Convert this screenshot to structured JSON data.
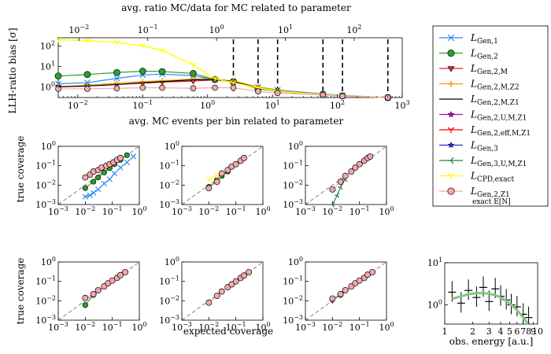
{
  "colors": {
    "gen1": "#2a8cf0",
    "gen2": "#2ca02c",
    "gen2M": "#d62728",
    "gen2MZ2": "#f0a000",
    "gen2MZ1": "#000000",
    "gen2UMZ1": "#c000c0",
    "gen2effMZ1": "#ff0000",
    "gen3": "#1f2fd0",
    "gen3UMZ1": "#208040",
    "cpd": "#ffff00",
    "gen2Z1": "#f4a6ad",
    "diag": "#999999",
    "energy_curve": "#7fc97f"
  },
  "legend": {
    "items": [
      {
        "key": "gen1",
        "base": "L",
        "sub": "Gen,1",
        "marker": "x",
        "color": "#2a8cf0"
      },
      {
        "key": "gen2",
        "base": "L",
        "sub": "Gen,2",
        "marker": "o",
        "color": "#2ca02c"
      },
      {
        "key": "gen2M",
        "base": "L",
        "sub": "Gen,2,M",
        "marker": "v",
        "color": "#d62728"
      },
      {
        "key": "gen2MZ2",
        "base": "L",
        "sub": "Gen,2,M,Z2",
        "marker": "plus",
        "color": "#f0a000"
      },
      {
        "key": "gen2MZ1",
        "base": "L",
        "sub": "Gen,2,M,Z1",
        "marker": "line",
        "color": "#000000"
      },
      {
        "key": "gen2UMZ1",
        "base": "L",
        "sub": "Gen,2,U,M,Z1",
        "marker": "star",
        "color": "#c000c0"
      },
      {
        "key": "gen2effMZ1",
        "base": "L",
        "sub": "Gen,2,eff,M,Z1",
        "marker": "tri1",
        "color": "#ff0000"
      },
      {
        "key": "gen3",
        "base": "L",
        "sub": "Gen,3",
        "marker": "star",
        "color": "#1f2fd0"
      },
      {
        "key": "gen3UMZ1",
        "base": "L",
        "sub": "Gen,3,U,M,Z1",
        "marker": "tri4",
        "color": "#208040"
      },
      {
        "key": "cpd",
        "base": "L",
        "sub": "CPD,exact",
        "marker": "tri1",
        "color": "#ffff00"
      },
      {
        "key": "gen2Z1",
        "base": "L",
        "sub": "Gen,2,Z1",
        "marker": "o",
        "color": "#f4a6ad",
        "sub2": "exact E[N]"
      }
    ]
  },
  "chart_data": [
    {
      "id": "bias",
      "type": "line",
      "title_top": "avg. ratio MC/data for MC related to parameter",
      "xlabel": "avg. MC events per bin related to parameter",
      "ylabel": "LLH-ratio bias [σ]",
      "xscale": "log",
      "yscale": "log",
      "xlim": [
        0.005,
        1000
      ],
      "ylim": [
        0.3,
        250
      ],
      "x_ticks": [
        "10^-2",
        "10^-1",
        "10^0",
        "10^1",
        "10^2",
        "10^3"
      ],
      "y_ticks": [
        "10^0",
        "10^1",
        "10^2"
      ],
      "top_xlim": [
        0.005,
        500
      ],
      "top_ticks": [
        "10^-2",
        "10^-1",
        "10^0",
        "10^1",
        "10^2"
      ],
      "vlines_x": [
        2.5,
        6,
        12,
        60,
        120,
        600
      ],
      "x": [
        0.005,
        0.014,
        0.04,
        0.1,
        0.2,
        0.6,
        1.3,
        2.5,
        6,
        12,
        60,
        120,
        600
      ],
      "series": [
        {
          "name": "gen1",
          "values": [
            1.4,
            1.6,
            2.6,
            3.8,
            4.2,
            3.5,
            2.2,
            1.7,
            1.0,
            0.7,
            0.45,
            0.38,
            0.3
          ]
        },
        {
          "name": "gen2",
          "values": [
            3.4,
            4.0,
            5.0,
            5.8,
            5.6,
            4.5,
            2.3,
            1.8,
            0.8,
            0.6,
            0.42,
            0.36,
            0.3
          ]
        },
        {
          "name": "gen2M",
          "values": [
            1.0,
            1.1,
            1.3,
            1.5,
            1.7,
            1.9,
            2.2,
            1.8,
            0.9,
            0.6,
            0.42,
            0.36,
            0.3
          ]
        },
        {
          "name": "gen2MZ2",
          "values": [
            1.0,
            1.2,
            1.5,
            1.8,
            2.0,
            2.4,
            2.5,
            1.9,
            1.0,
            0.65,
            0.42,
            0.36,
            0.3
          ]
        },
        {
          "name": "gen2MZ1",
          "values": [
            1.0,
            1.1,
            1.3,
            1.6,
            1.8,
            2.2,
            2.3,
            1.8,
            0.9,
            0.6,
            0.42,
            0.36,
            0.3
          ]
        },
        {
          "name": "cpd",
          "values": [
            200,
            180,
            150,
            100,
            60,
            12,
            2.5,
            1.6,
            0.9,
            0.6,
            0.42,
            0.36,
            0.3
          ]
        },
        {
          "name": "gen2Z1",
          "values": [
            0.8,
            0.8,
            0.85,
            0.9,
            0.9,
            0.85,
            0.9,
            0.9,
            0.6,
            0.5,
            0.4,
            0.35,
            0.3
          ]
        }
      ]
    },
    {
      "id": "cov-1",
      "type": "scatter",
      "ylabel": "true coverage",
      "xlim": [
        0.001,
        1
      ],
      "ylim": [
        0.001,
        1
      ],
      "x_ticks": [
        "10^-3",
        "10^-2",
        "10^-1",
        "10^0"
      ],
      "y_ticks": [
        "10^-3",
        "10^-2",
        "10^-1",
        "10^0"
      ],
      "series": [
        {
          "name": "gen1",
          "x": [
            0.01,
            0.015,
            0.02,
            0.03,
            0.05,
            0.08,
            0.12,
            0.2,
            0.35,
            0.6
          ],
          "y": [
            0.0025,
            0.003,
            0.004,
            0.006,
            0.012,
            0.02,
            0.04,
            0.08,
            0.15,
            0.3
          ]
        },
        {
          "name": "gen2",
          "x": [
            0.01,
            0.02,
            0.03,
            0.05,
            0.08,
            0.12,
            0.2,
            0.35
          ],
          "y": [
            0.007,
            0.015,
            0.025,
            0.045,
            0.075,
            0.12,
            0.2,
            0.35
          ]
        },
        {
          "name": "gen2Z1",
          "x": [
            0.01,
            0.015,
            0.02,
            0.03,
            0.04,
            0.06,
            0.08,
            0.11,
            0.15,
            0.2
          ],
          "y": [
            0.025,
            0.035,
            0.05,
            0.06,
            0.08,
            0.1,
            0.12,
            0.15,
            0.2,
            0.25
          ]
        }
      ]
    },
    {
      "id": "cov-2",
      "type": "scatter",
      "xlim": [
        0.001,
        1
      ],
      "ylim": [
        0.001,
        1
      ],
      "x_ticks": [
        "10^-3",
        "10^-2",
        "10^-1",
        "10^0"
      ],
      "y_ticks": [
        "10^-3",
        "10^-2",
        "10^-1",
        "10^0"
      ],
      "series": [
        {
          "name": "gen2",
          "x": [
            0.01,
            0.02,
            0.03,
            0.05
          ],
          "y": [
            0.008,
            0.018,
            0.03,
            0.05
          ]
        },
        {
          "name": "cpd",
          "x": [
            0.01,
            0.02,
            0.03
          ],
          "y": [
            0.02,
            0.03,
            0.04
          ]
        },
        {
          "name": "gen2Z1",
          "x": [
            0.01,
            0.02,
            0.03,
            0.05,
            0.07,
            0.1,
            0.15,
            0.2
          ],
          "y": [
            0.007,
            0.015,
            0.04,
            0.06,
            0.09,
            0.12,
            0.18,
            0.25
          ]
        }
      ]
    },
    {
      "id": "cov-3",
      "type": "scatter",
      "xlim": [
        0.001,
        1
      ],
      "ylim": [
        0.001,
        1
      ],
      "x_ticks": [
        "10^-3",
        "10^-2",
        "10^-1",
        "10^0"
      ],
      "y_ticks": [
        "10^-3",
        "10^-2",
        "10^-1",
        "10^0"
      ],
      "series": [
        {
          "name": "gen3UMZ1",
          "x": [
            0.01,
            0.015,
            0.02,
            0.03
          ],
          "y": [
            0.001,
            0.003,
            0.008,
            0.02
          ]
        },
        {
          "name": "gen2Z1",
          "x": [
            0.01,
            0.02,
            0.03,
            0.05,
            0.07,
            0.1,
            0.15,
            0.2,
            0.25
          ],
          "y": [
            0.006,
            0.015,
            0.03,
            0.05,
            0.08,
            0.12,
            0.18,
            0.25,
            0.3
          ]
        }
      ]
    },
    {
      "id": "cov-4",
      "type": "scatter",
      "ylabel": "true coverage",
      "xlim": [
        0.001,
        1
      ],
      "ylim": [
        0.001,
        1
      ],
      "x_ticks": [
        "10^-3",
        "10^-2",
        "10^-1",
        "10^0"
      ],
      "y_ticks": [
        "10^-3",
        "10^-2",
        "10^-1",
        "10^0"
      ],
      "series": [
        {
          "name": "gen2",
          "x": [
            0.01,
            0.02
          ],
          "y": [
            0.006,
            0.02
          ]
        },
        {
          "name": "gen2Z1",
          "x": [
            0.01,
            0.02,
            0.03,
            0.05,
            0.07,
            0.1,
            0.15,
            0.2,
            0.3
          ],
          "y": [
            0.014,
            0.022,
            0.035,
            0.055,
            0.08,
            0.11,
            0.15,
            0.21,
            0.3
          ]
        }
      ]
    },
    {
      "id": "cov-5",
      "type": "scatter",
      "xlabel": "expected coverage",
      "xlim": [
        0.001,
        1
      ],
      "ylim": [
        0.001,
        1
      ],
      "x_ticks": [
        "10^-3",
        "10^-2",
        "10^-1",
        "10^0"
      ],
      "y_ticks": [
        "10^-3",
        "10^-2",
        "10^-1",
        "10^0"
      ],
      "series": [
        {
          "name": "gen2Z1",
          "x": [
            0.01,
            0.02,
            0.03,
            0.05,
            0.07,
            0.1,
            0.15,
            0.2,
            0.3
          ],
          "y": [
            0.008,
            0.018,
            0.03,
            0.05,
            0.07,
            0.1,
            0.15,
            0.2,
            0.3
          ]
        }
      ]
    },
    {
      "id": "cov-6",
      "type": "scatter",
      "xlim": [
        0.001,
        1
      ],
      "ylim": [
        0.001,
        1
      ],
      "x_ticks": [
        "10^-3",
        "10^-2",
        "10^-1",
        "10^0"
      ],
      "y_ticks": [
        "10^-3",
        "10^-2",
        "10^-1",
        "10^0"
      ],
      "series": [
        {
          "name": "gen2",
          "x": [
            0.01,
            0.02
          ],
          "y": [
            0.012,
            0.02
          ]
        },
        {
          "name": "gen2M",
          "x": [
            0.01
          ],
          "y": [
            0.01
          ]
        },
        {
          "name": "gen2Z1",
          "x": [
            0.01,
            0.02,
            0.03,
            0.05,
            0.07,
            0.1,
            0.15,
            0.2,
            0.3
          ],
          "y": [
            0.013,
            0.022,
            0.035,
            0.055,
            0.08,
            0.11,
            0.15,
            0.22,
            0.3
          ]
        }
      ]
    },
    {
      "id": "energy",
      "type": "histogram",
      "xlabel": "obs. energy [a.u.]",
      "xlim": [
        1,
        10
      ],
      "ylim": [
        0.35,
        10
      ],
      "yscale": "log",
      "xscale": "log",
      "x_ticks": [
        "1",
        "2",
        "3",
        "4",
        "5",
        "6",
        "7",
        "8",
        "9",
        "10"
      ],
      "y_ticks": [
        "10^0",
        "10^1"
      ],
      "x": [
        1.2,
        1.5,
        1.8,
        2.2,
        2.6,
        3.0,
        3.5,
        4.0,
        4.6,
        5.2,
        6.0,
        7.0,
        8.0
      ],
      "curve_y": [
        1.4,
        1.6,
        1.8,
        1.9,
        1.9,
        1.85,
        1.7,
        1.5,
        1.25,
        1.0,
        0.75,
        0.5,
        0.35
      ],
      "data_y": [
        2.0,
        1.1,
        2.2,
        1.5,
        2.6,
        1.2,
        2.4,
        1.6,
        1.3,
        1.0,
        0.9,
        0.6,
        0.5
      ]
    }
  ]
}
